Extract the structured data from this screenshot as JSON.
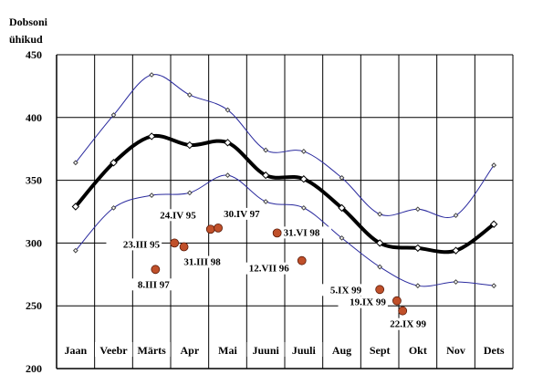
{
  "chart_data": {
    "type": "line",
    "title": "",
    "ylabel_line1": "Dobsoni",
    "ylabel_line2": "ühikud",
    "xlabel": "",
    "ylim": [
      200,
      450
    ],
    "yticks": [
      200,
      250,
      300,
      350,
      400,
      450
    ],
    "grid": true,
    "categories": [
      "Jaan",
      "Veebr",
      "Märts",
      "Apr",
      "Mai",
      "Juuni",
      "Juuli",
      "Aug",
      "Sept",
      "Okt",
      "Nov",
      "Dets"
    ],
    "series": [
      {
        "name": "",
        "color": "#000000",
        "style": "thick",
        "values": [
          329,
          364,
          385,
          378,
          380,
          354,
          351,
          328,
          300,
          296,
          294,
          315
        ]
      },
      {
        "name": "",
        "color": "#2a2a9e",
        "style": "thin",
        "values": [
          364,
          402,
          434,
          418,
          406,
          374,
          373,
          352,
          323,
          327,
          322,
          362
        ]
      },
      {
        "name": "",
        "color": "#2a2a9e",
        "style": "thin",
        "values": [
          294,
          328,
          338,
          340,
          354,
          333,
          328,
          304,
          281,
          266,
          269,
          266
        ]
      }
    ],
    "observations": [
      {
        "label": "8.III 97",
        "x": 2.1,
        "y": 279,
        "color": "#c0502a"
      },
      {
        "label": "23.III 95",
        "x": 2.6,
        "y": 300,
        "color": "#c0502a"
      },
      {
        "label": "31.III 98",
        "x": 2.85,
        "y": 297,
        "color": "#c0502a"
      },
      {
        "label": "24.IV 95",
        "x": 3.55,
        "y": 311,
        "color": "#c0502a"
      },
      {
        "label": "30.IV 97",
        "x": 3.75,
        "y": 312,
        "color": "#c0502a"
      },
      {
        "label": "31.VI 98",
        "x": 5.3,
        "y": 308,
        "color": "#c0502a"
      },
      {
        "label": "12.VII 96",
        "x": 5.95,
        "y": 286,
        "color": "#c0502a"
      },
      {
        "label": "5.IX 99",
        "x": 8.0,
        "y": 263,
        "color": "#c0502a"
      },
      {
        "label": "19.IX 99",
        "x": 8.45,
        "y": 254,
        "color": "#c0502a"
      },
      {
        "label": "22.IX 99",
        "x": 8.6,
        "y": 246,
        "color": "#c0502a"
      }
    ]
  }
}
